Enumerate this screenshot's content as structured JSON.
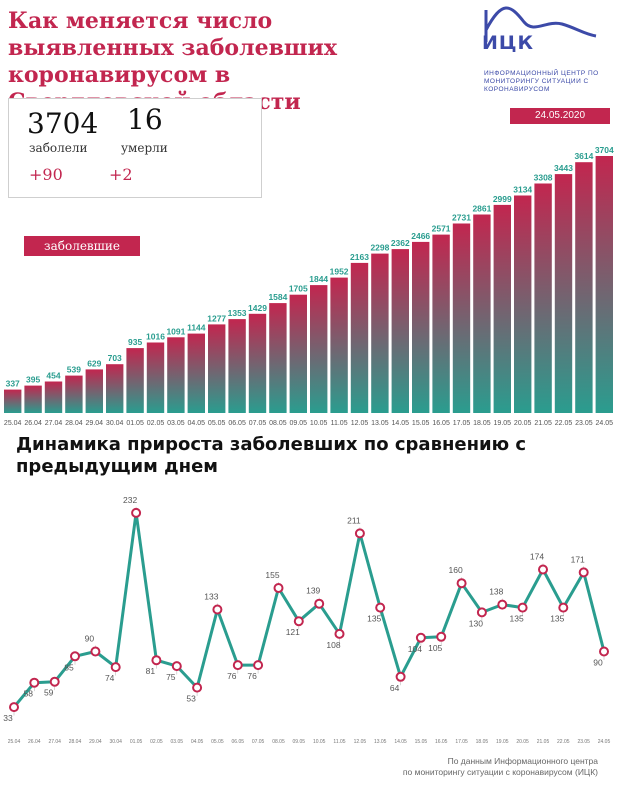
{
  "header": {
    "title": "Как меняется число выявленных заболевших коронавирусом в Свердловской области",
    "logo_text": "ИЦК",
    "logo_subtitle": "Информационный центр по мониторингу ситуации с коронавирусом",
    "date": "24.05.2020"
  },
  "stats": {
    "cases_value": "3704",
    "cases_label": "заболели",
    "cases_delta": "+90",
    "deaths_value": "16",
    "deaths_label": "умерли",
    "deaths_delta": "+2"
  },
  "colors": {
    "accent": "#c2264f",
    "bar_top": "#c2264f",
    "bar_bottom": "#2a9d8f",
    "line": "#2a9d8f"
  },
  "chart_data": [
    {
      "type": "bar",
      "title": "",
      "legend": "заболевшие",
      "categories": [
        "25.04",
        "26.04",
        "27.04",
        "28.04",
        "29.04",
        "30.04",
        "01.05",
        "02.05",
        "03.05",
        "04.05",
        "05.05",
        "06.05",
        "07.05",
        "08.05",
        "09.05",
        "10.05",
        "11.05",
        "12.05",
        "13.05",
        "14.05",
        "15.05",
        "16.05",
        "17.05",
        "18.05",
        "19.05",
        "20.05",
        "21.05",
        "22.05",
        "23.05",
        "24.05"
      ],
      "values": [
        337,
        395,
        454,
        539,
        629,
        703,
        935,
        1016,
        1091,
        1144,
        1277,
        1353,
        1429,
        1584,
        1705,
        1844,
        1952,
        2163,
        2298,
        2362,
        2466,
        2571,
        2731,
        2861,
        2999,
        3134,
        3308,
        3443,
        3614,
        3704
      ],
      "ylim": [
        0,
        3704
      ]
    },
    {
      "type": "line",
      "title": "Динамика прироста заболевших по сравнению с предыдущим днем",
      "categories": [
        "25.04",
        "26.04",
        "27.04",
        "28.04",
        "29.04",
        "30.04",
        "01.05",
        "02.05",
        "03.05",
        "04.05",
        "05.05",
        "06.05",
        "07.05",
        "08.05",
        "09.05",
        "10.05",
        "11.05",
        "12.05",
        "13.05",
        "14.05",
        "15.05",
        "16.05",
        "17.05",
        "18.05",
        "19.05",
        "20.05",
        "21.05",
        "22.05",
        "23.05",
        "24.05"
      ],
      "values": [
        33,
        58,
        59,
        85,
        90,
        74,
        232,
        81,
        75,
        53,
        133,
        76,
        76,
        155,
        121,
        139,
        108,
        211,
        135,
        64,
        104,
        105,
        160,
        130,
        138,
        135,
        174,
        135,
        171,
        90
      ],
      "ylim": [
        30,
        235
      ]
    }
  ],
  "footer": {
    "source_line1": "По данным Информационного центра",
    "source_line2": "по мониторингу ситуации с коронавирусом (ИЦК)"
  }
}
